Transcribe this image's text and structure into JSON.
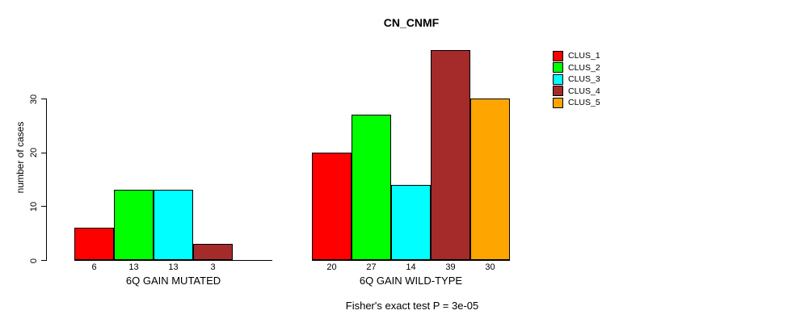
{
  "chart_data": {
    "type": "bar",
    "title": "CN_CNMF",
    "ylabel": "number of cases",
    "xlabel": "",
    "annotation": "Fisher's exact test P = 3e-05",
    "ylim": [
      0,
      30
    ],
    "yticks": [
      0,
      10,
      20,
      30
    ],
    "grid": false,
    "legend_position": "right",
    "bar_border_color": "#000000",
    "series": [
      {
        "name": "CLUS_1",
        "color": "#FF0000"
      },
      {
        "name": "CLUS_2",
        "color": "#00FF00"
      },
      {
        "name": "CLUS_3",
        "color": "#00FFFF"
      },
      {
        "name": "CLUS_4",
        "color": "#A52A2A"
      },
      {
        "name": "CLUS_5",
        "color": "#FFA500"
      }
    ],
    "groups": [
      {
        "label": "6Q GAIN MUTATED",
        "values": [
          6,
          13,
          13,
          3,
          0
        ]
      },
      {
        "label": "6Q GAIN WILD-TYPE",
        "values": [
          20,
          27,
          14,
          39,
          30
        ]
      }
    ],
    "bar_value_labels_shown": true,
    "zero_bars_hidden": true
  }
}
